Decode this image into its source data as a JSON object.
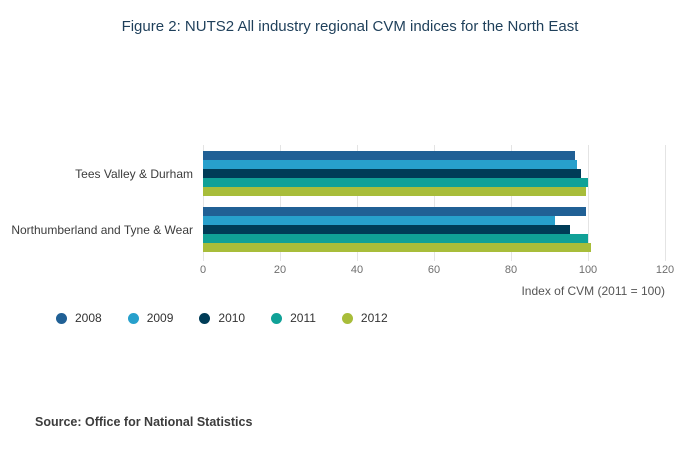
{
  "title": "Figure 2: NUTS2 All industry regional CVM indices for the North East",
  "source": "Source: Office for National Statistics",
  "chart_data": {
    "type": "bar",
    "orientation": "horizontal",
    "title": "Figure 2: NUTS2 All industry regional CVM indices for the North East",
    "categories": [
      "Tees Valley & Durham",
      "Northumberland and Tyne & Wear"
    ],
    "series": [
      {
        "name": "2008",
        "color": "#206095",
        "values": [
          96.5,
          99.5
        ]
      },
      {
        "name": "2009",
        "color": "#27a0cc",
        "values": [
          97.2,
          91.3
        ]
      },
      {
        "name": "2010",
        "color": "#003c57",
        "values": [
          98.1,
          95.2
        ]
      },
      {
        "name": "2011",
        "color": "#10a197",
        "values": [
          100,
          100
        ]
      },
      {
        "name": "2012",
        "color": "#a8bd3a",
        "values": [
          99.4,
          100.9
        ]
      }
    ],
    "xlabel": "Index of CVM (2011 = 100)",
    "xlim": [
      0,
      120
    ],
    "xticks": [
      0,
      20,
      40,
      60,
      80,
      100,
      120
    ],
    "grid": true,
    "legend_position": "bottom-left"
  }
}
